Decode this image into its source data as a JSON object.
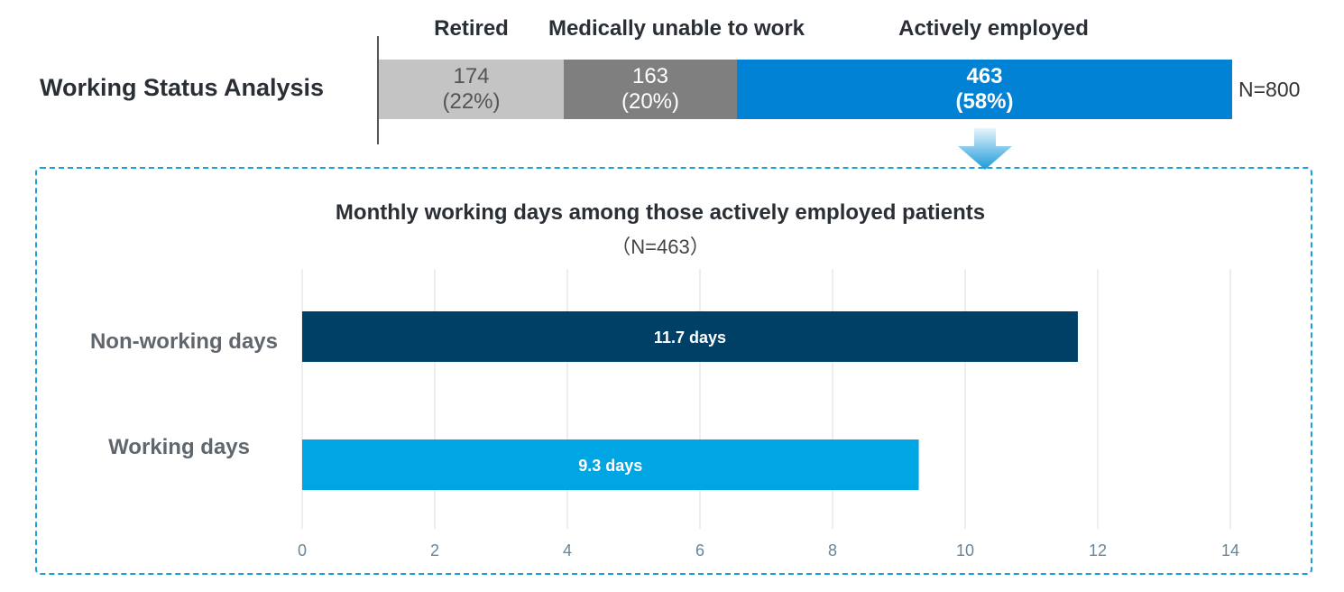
{
  "working_status": {
    "title": "Working Status Analysis",
    "total": "N=800",
    "segments": [
      {
        "label": "Retired",
        "count": "174",
        "percent": "(22%)",
        "value": 174,
        "color": "#c4c4c4"
      },
      {
        "label": "Medically unable to work",
        "count": "163",
        "percent": "(20%)",
        "value": 163,
        "color": "#7f7f7f"
      },
      {
        "label": "Actively employed",
        "count": "463",
        "percent": "(58%)",
        "value": 463,
        "color": "#0282d4"
      }
    ]
  },
  "subchart": {
    "title": "Monthly working days among those actively employed patients",
    "n_label": "（N=463）"
  },
  "chart_data": {
    "type": "bar",
    "orientation": "horizontal",
    "title": "Monthly working days among those actively employed patients",
    "categories": [
      "Non-working days",
      "Working days"
    ],
    "values": [
      11.7,
      9.3
    ],
    "data_labels": [
      "11.7 days",
      "9.3 days"
    ],
    "colors": [
      "#003f66",
      "#00a6e3"
    ],
    "xlim": [
      0,
      14
    ],
    "xticks": [
      "0",
      "2",
      "4",
      "6",
      "8",
      "10",
      "12",
      "14"
    ],
    "grid": true,
    "xlabel": "",
    "ylabel": ""
  }
}
